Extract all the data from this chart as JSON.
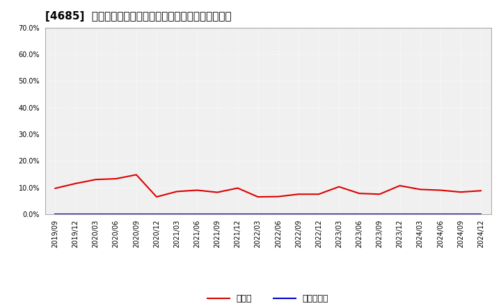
{
  "title": "[4685]  現預金、有利子負債の総資産に対する比率の推移",
  "x_labels": [
    "2019/09",
    "2019/12",
    "2020/03",
    "2020/06",
    "2020/09",
    "2020/12",
    "2021/03",
    "2021/06",
    "2021/09",
    "2021/12",
    "2022/03",
    "2022/06",
    "2022/09",
    "2022/12",
    "2023/03",
    "2023/06",
    "2023/09",
    "2023/12",
    "2024/03",
    "2024/06",
    "2024/09",
    "2024/12"
  ],
  "cash_ratio": [
    0.097,
    0.115,
    0.13,
    0.133,
    0.148,
    0.065,
    0.085,
    0.09,
    0.082,
    0.098,
    0.065,
    0.066,
    0.075,
    0.075,
    0.103,
    0.078,
    0.075,
    0.107,
    0.093,
    0.09,
    0.083,
    0.088
  ],
  "debt_ratio": [
    0.0,
    0.0,
    0.0,
    0.0,
    0.0,
    0.0,
    0.0,
    0.0,
    0.0,
    0.0,
    0.0,
    0.0,
    0.0,
    0.0,
    0.0,
    0.0,
    0.0,
    0.0,
    0.0,
    0.0,
    0.0,
    0.0
  ],
  "cash_color": "#dd0000",
  "debt_color": "#0000cc",
  "cash_label": "現預金",
  "debt_label": "有利子負債",
  "ylim": [
    0.0,
    0.7
  ],
  "yticks": [
    0.0,
    0.1,
    0.2,
    0.3,
    0.4,
    0.5,
    0.6,
    0.7
  ],
  "background_color": "#ffffff",
  "plot_bg_color": "#f0f0f0",
  "grid_color": "#ffffff",
  "title_fontsize": 11,
  "axis_fontsize": 7,
  "legend_fontsize": 9
}
